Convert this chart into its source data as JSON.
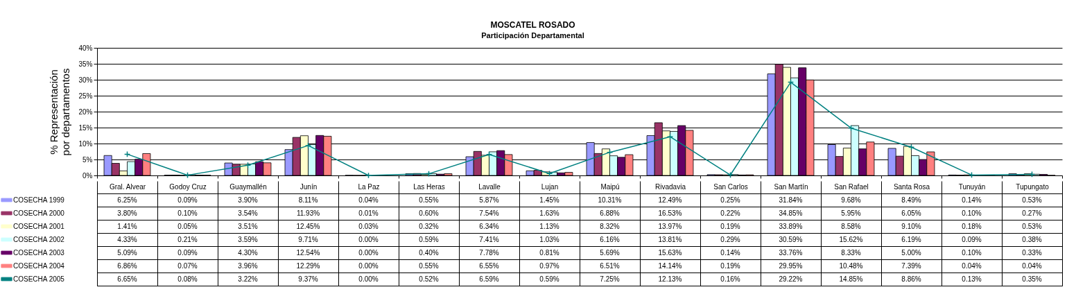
{
  "chart_data": {
    "type": "bar",
    "title": "MOSCATEL ROSADO",
    "subtitle": "Participación Departamental",
    "ylabel": "% Representación\npor departamentos",
    "categories": [
      "Gral. Alvear",
      "Godoy Cruz",
      "Guaymallén",
      "Junín",
      "La Paz",
      "Las Heras",
      "Lavalle",
      "Lujan",
      "Maipú",
      "Rivadavia",
      "San Carlos",
      "San Martín",
      "San Rafael",
      "Santa Rosa",
      "Tunuyán",
      "Tupungato"
    ],
    "ylim": [
      0,
      40
    ],
    "yticks": [
      {
        "value": 0,
        "label": "0%"
      },
      {
        "value": 5,
        "label": "5%"
      },
      {
        "value": 10,
        "label": "10%"
      },
      {
        "value": 15,
        "label": "15%"
      },
      {
        "value": 20,
        "label": "20%"
      },
      {
        "value": 25,
        "label": "25%"
      },
      {
        "value": 30,
        "label": "30%"
      },
      {
        "value": 35,
        "label": "35%"
      },
      {
        "value": 40,
        "label": "40%"
      }
    ],
    "grid": "y",
    "legend": "bottom left",
    "marker": "cross",
    "series": [
      {
        "name": "COSECHA 1999",
        "type": "bar",
        "color": "#9999ff",
        "values": [
          6.25,
          0.09,
          3.9,
          8.11,
          0.04,
          0.55,
          5.87,
          1.45,
          10.31,
          12.49,
          0.25,
          31.84,
          9.68,
          8.49,
          0.14,
          0.53
        ],
        "value_labels": [
          "6.25%",
          "0.09%",
          "3.90%",
          "8.11%",
          "0.04%",
          "0.55%",
          "5.87%",
          "1.45%",
          "10.31%",
          "12.49%",
          "0.25%",
          "31.84%",
          "9.68%",
          "8.49%",
          "0.14%",
          "0.53%"
        ]
      },
      {
        "name": "COSECHA 2000",
        "type": "bar",
        "color": "#993366",
        "values": [
          3.8,
          0.1,
          3.54,
          11.93,
          0.01,
          0.6,
          7.54,
          1.63,
          6.88,
          16.53,
          0.22,
          34.85,
          5.95,
          6.05,
          0.1,
          0.27
        ],
        "value_labels": [
          "3.80%",
          "0.10%",
          "3.54%",
          "11.93%",
          "0.01%",
          "0.60%",
          "7.54%",
          "1.63%",
          "6.88%",
          "16.53%",
          "0.22%",
          "34.85%",
          "5.95%",
          "6.05%",
          "0.10%",
          "0.27%"
        ]
      },
      {
        "name": "COSECHA 2001",
        "type": "bar",
        "color": "#ffffcc",
        "values": [
          1.41,
          0.05,
          3.51,
          12.45,
          0.03,
          0.32,
          6.34,
          1.13,
          8.32,
          13.97,
          0.19,
          33.89,
          8.58,
          9.1,
          0.18,
          0.53
        ],
        "value_labels": [
          "1.41%",
          "0.05%",
          "3.51%",
          "12.45%",
          "0.03%",
          "0.32%",
          "6.34%",
          "1.13%",
          "8.32%",
          "13.97%",
          "0.19%",
          "33.89%",
          "8.58%",
          "9.10%",
          "0.18%",
          "0.53%"
        ]
      },
      {
        "name": "COSECHA 2002",
        "type": "bar",
        "color": "#ccffff",
        "values": [
          4.33,
          0.21,
          3.59,
          9.71,
          0.0,
          0.59,
          7.41,
          1.03,
          6.16,
          13.81,
          0.29,
          30.59,
          15.62,
          6.19,
          0.09,
          0.38
        ],
        "value_labels": [
          "4.33%",
          "0.21%",
          "3.59%",
          "9.71%",
          "0.00%",
          "0.59%",
          "7.41%",
          "1.03%",
          "6.16%",
          "13.81%",
          "0.29%",
          "30.59%",
          "15.62%",
          "6.19%",
          "0.09%",
          "0.38%"
        ]
      },
      {
        "name": "COSECHA 2003",
        "type": "bar",
        "color": "#660066",
        "values": [
          5.09,
          0.09,
          4.3,
          12.54,
          0.0,
          0.4,
          7.78,
          0.81,
          5.69,
          15.63,
          0.14,
          33.76,
          8.33,
          5.0,
          0.1,
          0.33
        ],
        "value_labels": [
          "5.09%",
          "0.09%",
          "4.30%",
          "12.54%",
          "0.00%",
          "0.40%",
          "7.78%",
          "0.81%",
          "5.69%",
          "15.63%",
          "0.14%",
          "33.76%",
          "8.33%",
          "5.00%",
          "0.10%",
          "0.33%"
        ]
      },
      {
        "name": "COSECHA 2004",
        "type": "bar",
        "color": "#ff8080",
        "values": [
          6.86,
          0.07,
          3.96,
          12.29,
          0.0,
          0.55,
          6.55,
          0.97,
          6.51,
          14.14,
          0.19,
          29.95,
          10.48,
          7.39,
          0.04,
          0.04
        ],
        "value_labels": [
          "6.86%",
          "0.07%",
          "3.96%",
          "12.29%",
          "0.00%",
          "0.55%",
          "6.55%",
          "0.97%",
          "6.51%",
          "14.14%",
          "0.19%",
          "29.95%",
          "10.48%",
          "7.39%",
          "0.04%",
          "0.04%"
        ]
      },
      {
        "name": "COSECHA 2005",
        "type": "line",
        "color": "#008080",
        "values": [
          6.65,
          0.08,
          3.22,
          9.37,
          0.0,
          0.52,
          6.59,
          0.59,
          7.25,
          12.13,
          0.16,
          29.22,
          14.85,
          8.86,
          0.13,
          0.35
        ],
        "value_labels": [
          "6.65%",
          "0.08%",
          "3.22%",
          "9.37%",
          "0.00%",
          "0.52%",
          "6.59%",
          "0.59%",
          "7.25%",
          "12.13%",
          "0.16%",
          "29.22%",
          "14.85%",
          "8.86%",
          "0.13%",
          "0.35%"
        ]
      }
    ]
  }
}
